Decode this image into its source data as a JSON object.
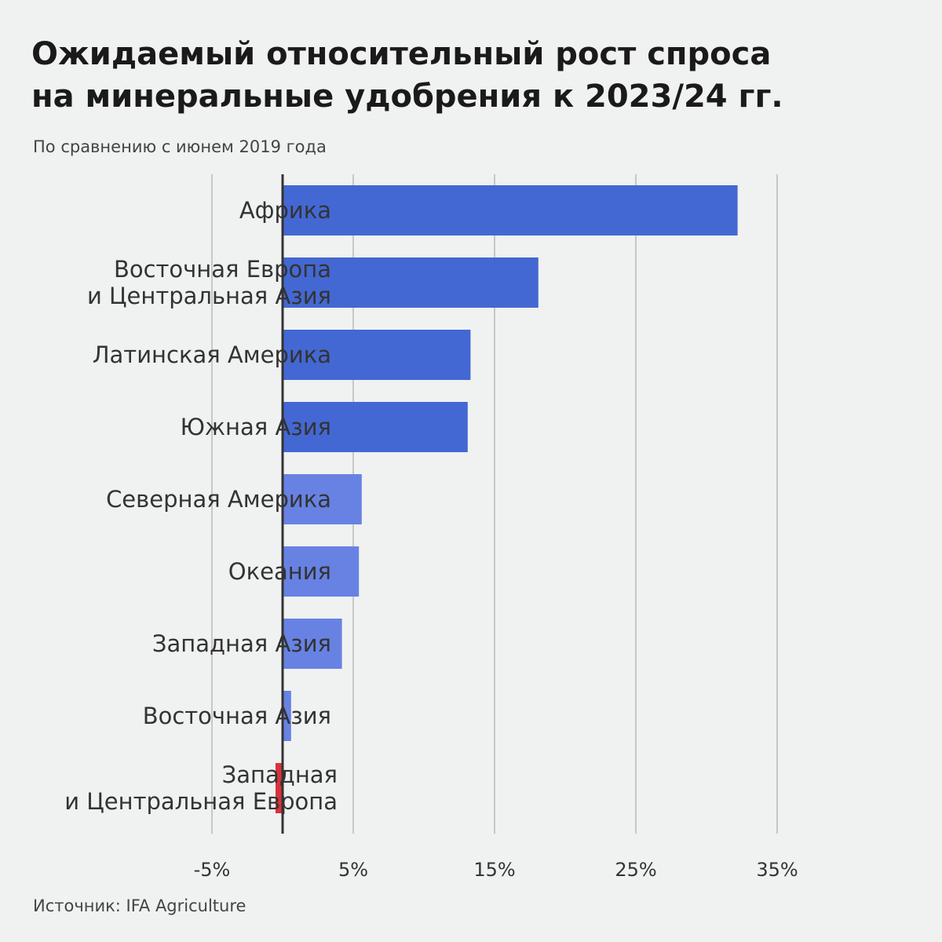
{
  "chart_data": {
    "type": "bar",
    "orientation": "horizontal",
    "title_lines": [
      "Ожидаемый относительный рост спроса",
      "на минеральные удобрения к 2023/24 гг."
    ],
    "subtitle": "По сравнению с июнем 2019 года",
    "source": "Источник: IFA Agriculture",
    "categories": [
      [
        "Африка"
      ],
      [
        "Восточная Европа",
        "и Центральная Азия"
      ],
      [
        "Латинская Америка"
      ],
      [
        "Южная Азия"
      ],
      [
        "Северная Америка"
      ],
      [
        "Океания"
      ],
      [
        "Западная Азия"
      ],
      [
        "Восточная Азия"
      ],
      [
        "Западная",
        "и Центральная Европа"
      ]
    ],
    "values": [
      32.2,
      18.1,
      13.3,
      13.1,
      5.6,
      5.4,
      4.2,
      0.6,
      -0.5
    ],
    "bar_colors": [
      "#4368d3",
      "#4368d3",
      "#4368d3",
      "#4368d3",
      "#6782e3",
      "#6782e3",
      "#6782e3",
      "#6782e3",
      "#d8323c"
    ],
    "xlim": [
      -10,
      40
    ],
    "xticks": [
      -5,
      5,
      15,
      25,
      35
    ],
    "xtick_labels": [
      "-5%",
      "5%",
      "15%",
      "25%",
      "35%"
    ],
    "grid": true,
    "legend": "none"
  }
}
